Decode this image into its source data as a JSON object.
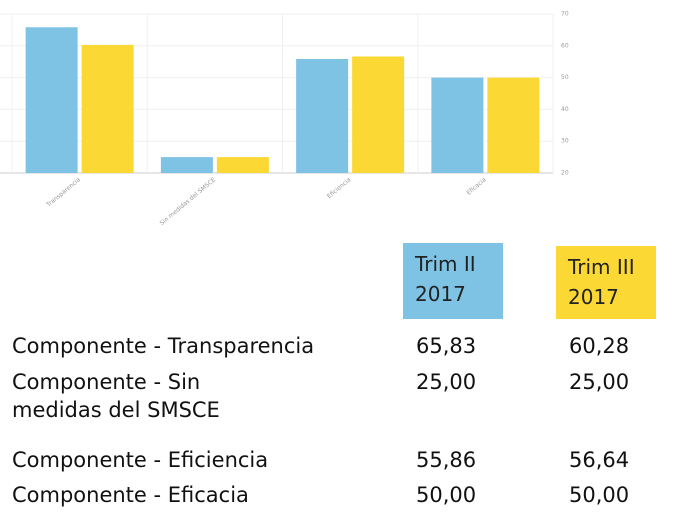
{
  "chart_data": {
    "type": "bar",
    "categories": [
      "Transparencia",
      "Sin medidas del SMSCE",
      "Eficiencia",
      "Eficacia"
    ],
    "series": [
      {
        "name": "Trim II 2017",
        "color": "#7fc3e4",
        "values": [
          65.83,
          25,
          55.86,
          50
        ],
        "value_labels": [
          "65,83",
          "25,00",
          "55,86",
          "50,00"
        ]
      },
      {
        "name": "Trim III 2017",
        "color": "#fcd835",
        "values": [
          60.28,
          25,
          56.64,
          50
        ],
        "value_labels": [
          "60,28",
          "25,00",
          "56,64",
          "50,00"
        ]
      }
    ],
    "ylim": [
      20,
      70
    ],
    "yticks": [
      20,
      30,
      40,
      50,
      60,
      70
    ],
    "grid": true
  },
  "table": {
    "rows": [
      "Componente - Transparencia",
      "Componente - Sin medidas del SMSCE",
      "Componente - Eficiencia",
      "Componente - Eficacia"
    ]
  }
}
